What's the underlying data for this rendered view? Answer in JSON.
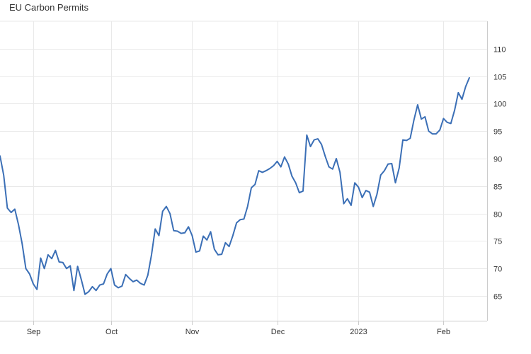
{
  "title": "EU Carbon Permits",
  "chart_data": {
    "type": "line",
    "title": "EU Carbon Permits",
    "xlabel": "",
    "ylabel": "",
    "ylim": [
      60.5,
      115
    ],
    "y_ticks": [
      65,
      70,
      75,
      80,
      85,
      90,
      95,
      100,
      105,
      110
    ],
    "x_ticks": [
      "Sep",
      "Oct",
      "Nov",
      "Dec",
      "2023",
      "Feb"
    ],
    "x_tick_index": [
      9,
      30,
      52,
      75,
      97,
      120
    ],
    "grid": true,
    "y_axis_position": "right",
    "color": "#3b6fb6",
    "series": [
      {
        "values": [
          90.5,
          87.0,
          81.0,
          80.2,
          80.8,
          78.0,
          74.5,
          70.0,
          69.0,
          67.2,
          66.2,
          71.9,
          70.0,
          72.5,
          71.8,
          73.3,
          71.2,
          71.1,
          70.0,
          70.5,
          66.0,
          70.4,
          68.0,
          65.3,
          65.8,
          66.7,
          66.0,
          67.0,
          67.2,
          69.0,
          70.0,
          67.0,
          66.5,
          66.8,
          68.9,
          68.2,
          67.6,
          67.9,
          67.3,
          67.0,
          68.8,
          72.5,
          77.2,
          76.0,
          80.4,
          81.3,
          80.0,
          76.9,
          76.8,
          76.4,
          76.5,
          77.6,
          76.0,
          73.0,
          73.2,
          75.9,
          75.2,
          76.7,
          73.5,
          72.5,
          72.6,
          74.7,
          74.0,
          76.0,
          78.3,
          78.9,
          79.0,
          81.3,
          84.7,
          85.3,
          87.8,
          87.5,
          87.8,
          88.2,
          88.7,
          89.5,
          88.5,
          90.3,
          89.0,
          86.8,
          85.6,
          83.8,
          84.1,
          94.3,
          92.2,
          93.4,
          93.6,
          92.6,
          90.4,
          88.5,
          88.1,
          90.0,
          87.5,
          81.8,
          82.7,
          81.5,
          85.6,
          84.8,
          82.9,
          84.2,
          83.9,
          81.3,
          83.5,
          87.0,
          87.8,
          89.0,
          89.1,
          85.6,
          88.3,
          93.4,
          93.3,
          93.7,
          97.0,
          99.8,
          97.2,
          97.6,
          95.0,
          94.5,
          94.5,
          95.2,
          97.3,
          96.6,
          96.4,
          98.8,
          102.0,
          100.8,
          103.1,
          104.7
        ]
      }
    ]
  }
}
